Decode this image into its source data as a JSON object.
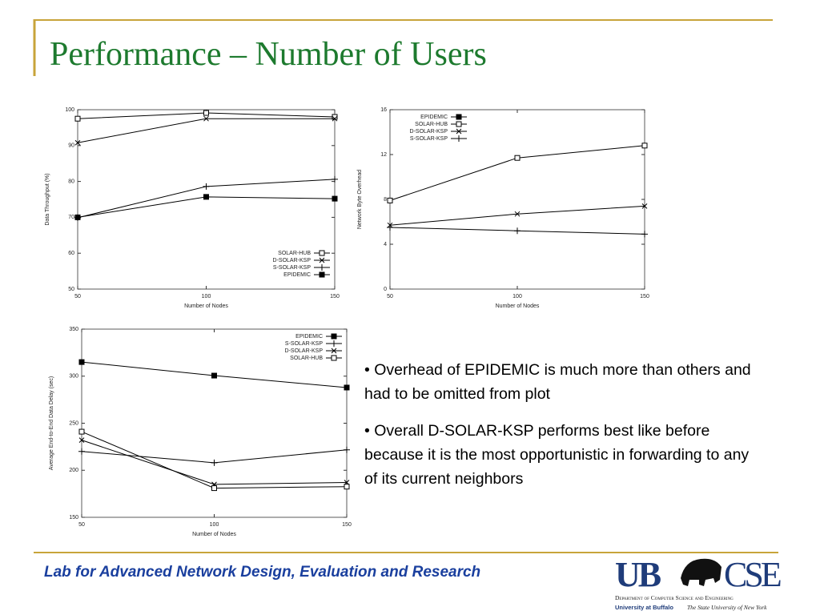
{
  "title": "Performance – Number of Users",
  "bullets": [
    "Overhead of EPIDEMIC is much more than others and had to be omitted from plot",
    "Overall D-SOLAR-KSP performs best like before because it is the most opportunistic in forwarding to any of its current neighbors"
  ],
  "footer": "Lab for Advanced Network Design, Evaluation and Research",
  "logo": {
    "ub": "UB",
    "cse": "CSE",
    "department": "Department of Computer Science and Engineering",
    "university": "University at Buffalo",
    "state": "The State University of New York"
  },
  "chart_data": [
    {
      "type": "line",
      "x": [
        50,
        100,
        150
      ],
      "xlim": [
        50,
        150
      ],
      "xticks": [
        50,
        100,
        150
      ],
      "ylim": [
        50,
        100
      ],
      "yticks": [
        50,
        60,
        70,
        80,
        90,
        100
      ],
      "xlabel": "Number of Nodes",
      "ylabel": "Data Throughput (%)",
      "legend": "lower right",
      "series": [
        {
          "name": "SOLAR-HUB",
          "color": "#000000",
          "marker": "open-square",
          "values": [
            97.5,
            99.1,
            98
          ]
        },
        {
          "name": "D-SOLAR-KSP",
          "color": "#000000",
          "marker": "x",
          "values": [
            90.8,
            97.5,
            97.5
          ]
        },
        {
          "name": "S-SOLAR-KSP",
          "color": "#000000",
          "marker": "plus",
          "values": [
            69.9,
            78.6,
            80.6
          ]
        },
        {
          "name": "EPIDEMIC",
          "color": "#000000",
          "marker": "filled-square",
          "values": [
            70,
            75.7,
            75.2
          ]
        }
      ]
    },
    {
      "type": "line",
      "x": [
        50,
        100,
        150
      ],
      "xlim": [
        50,
        150
      ],
      "xticks": [
        50,
        100,
        150
      ],
      "ylim": [
        0,
        16
      ],
      "yticks": [
        0,
        4,
        8,
        12,
        16
      ],
      "xlabel": "Number of Nodes",
      "ylabel": "Network Byte Overhead",
      "legend": "upper left",
      "series": [
        {
          "name": "EPIDEMIC",
          "color": "#000000",
          "marker": "filled-square",
          "values": [
            null,
            null,
            null
          ]
        },
        {
          "name": "SOLAR-HUB",
          "color": "#000000",
          "marker": "open-square",
          "values": [
            7.9,
            11.7,
            12.8
          ]
        },
        {
          "name": "D-SOLAR-KSP",
          "color": "#000000",
          "marker": "x",
          "values": [
            5.7,
            6.7,
            7.4
          ]
        },
        {
          "name": "S-SOLAR-KSP",
          "color": "#000000",
          "marker": "plus",
          "values": [
            5.5,
            5.2,
            4.9
          ]
        }
      ]
    },
    {
      "type": "line",
      "x": [
        50,
        100,
        150
      ],
      "xlim": [
        50,
        150
      ],
      "xticks": [
        50,
        100,
        150
      ],
      "ylim": [
        150,
        350
      ],
      "yticks": [
        150,
        200,
        250,
        300,
        350
      ],
      "xlabel": "Number of Nodes",
      "ylabel": "Average End-to-End Data Delay (sec)",
      "legend": "upper right",
      "series": [
        {
          "name": "EPIDEMIC",
          "color": "#000000",
          "marker": "filled-square",
          "values": [
            315,
            300.6,
            287.9
          ]
        },
        {
          "name": "S-SOLAR-KSP",
          "color": "#000000",
          "marker": "plus",
          "values": [
            220,
            208,
            221.7
          ]
        },
        {
          "name": "D-SOLAR-KSP",
          "color": "#000000",
          "marker": "x",
          "values": [
            232,
            185,
            187
          ]
        },
        {
          "name": "SOLAR-HUB",
          "color": "#000000",
          "marker": "open-square",
          "values": [
            241,
            181,
            182.6
          ]
        }
      ]
    }
  ]
}
